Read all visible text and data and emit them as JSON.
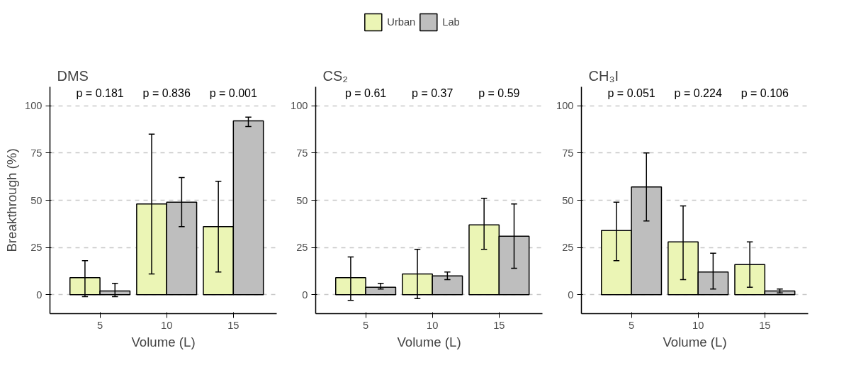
{
  "chart_data": [
    {
      "type": "bar",
      "title": "DMS",
      "xlabel": "Volume (L)",
      "ylabel": "Breakthrough (%)",
      "categories": [
        "5",
        "10",
        "15"
      ],
      "ylim": [
        -10,
        110
      ],
      "yticks": [
        0,
        25,
        50,
        75,
        100
      ],
      "grid": "y",
      "series": [
        {
          "color": "#ebf5b5",
          "values": [
            9,
            48,
            36
          ],
          "errors": [
            [
              -1,
              18
            ],
            [
              11,
              85
            ],
            [
              12,
              60
            ]
          ]
        },
        {
          "color": "#bebebe",
          "values": [
            2,
            49,
            92
          ],
          "errors": [
            [
              -1,
              6
            ],
            [
              36,
              62
            ],
            [
              89,
              94
            ]
          ]
        }
      ],
      "annotations": [
        "p = 0.181",
        "p = 0.836",
        "p = 0.001"
      ]
    },
    {
      "type": "bar",
      "title": "CS₂",
      "xlabel": "Volume (L)",
      "categories": [
        "5",
        "10",
        "15"
      ],
      "ylim": [
        -10,
        110
      ],
      "yticks": [
        0,
        25,
        50,
        75,
        100
      ],
      "grid": "y",
      "legend": "top",
      "series": [
        {
          "name": "Urban",
          "color": "#ebf5b5",
          "values": [
            9,
            11,
            37
          ],
          "errors": [
            [
              -3,
              20
            ],
            [
              -2,
              24
            ],
            [
              24,
              51
            ]
          ]
        },
        {
          "name": "Lab",
          "color": "#bebebe",
          "values": [
            4,
            10,
            31
          ],
          "errors": [
            [
              3,
              6
            ],
            [
              8,
              12
            ],
            [
              14,
              48
            ]
          ]
        }
      ],
      "annotations": [
        "p = 0.61",
        "p = 0.37",
        "p = 0.59"
      ]
    },
    {
      "type": "bar",
      "title": "CH₃I",
      "xlabel": "Volume (L)",
      "categories": [
        "5",
        "10",
        "15"
      ],
      "ylim": [
        -10,
        110
      ],
      "yticks": [
        0,
        25,
        50,
        75,
        100
      ],
      "grid": "y",
      "series": [
        {
          "color": "#ebf5b5",
          "values": [
            34,
            28,
            16
          ],
          "errors": [
            [
              18,
              49
            ],
            [
              8,
              47
            ],
            [
              4,
              28
            ]
          ]
        },
        {
          "color": "#bebebe",
          "values": [
            57,
            12,
            2
          ],
          "errors": [
            [
              39,
              75
            ],
            [
              3,
              22
            ],
            [
              1,
              3
            ]
          ]
        }
      ],
      "annotations": [
        "p = 0.051",
        "p = 0.224",
        "p = 0.106"
      ]
    }
  ]
}
